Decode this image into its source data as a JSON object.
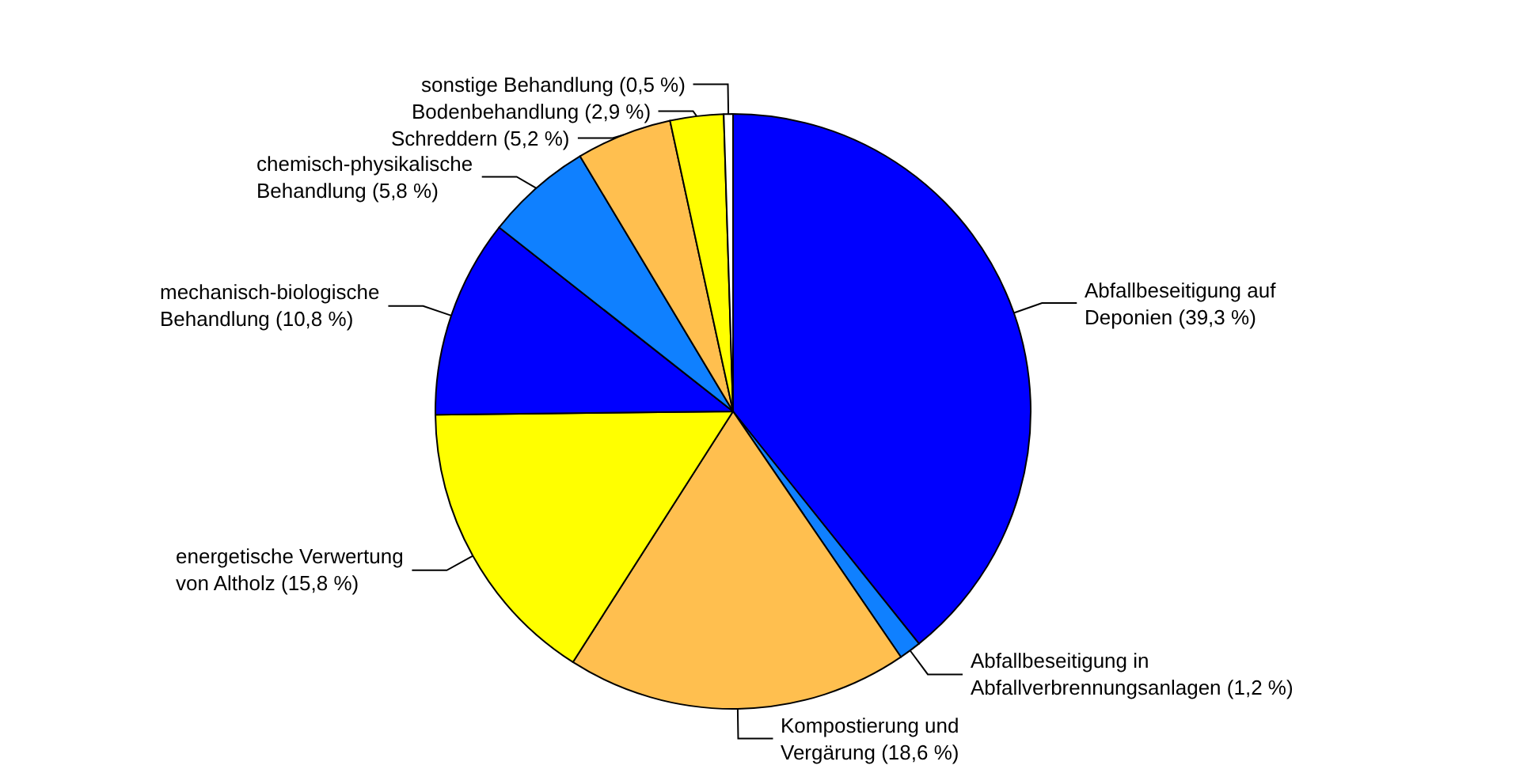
{
  "chart_data": {
    "type": "pie",
    "categories": [
      "Abfallbeseitigung auf\nDeponien",
      "Abfallbeseitigung in\nAbfallverbrennungsanlagen",
      "Kompostierung und\nVergärung",
      "energetische Verwertung\nvon Altholz",
      "mechanisch-biologische\nBehandlung",
      "chemisch-physikalische\nBehandlung",
      "Schreddern",
      "Bodenbehandlung",
      "sonstige Behandlung"
    ],
    "values": [
      39.3,
      1.2,
      18.6,
      15.8,
      10.8,
      5.8,
      5.2,
      2.9,
      0.5
    ],
    "value_labels": [
      "(39,3 %)",
      "(1,2 %)",
      "(18,6 %)",
      "(15,8 %)",
      "(10,8 %)",
      "(5,8 %)",
      "(5,2 %)",
      "(2,9 %)",
      "(0,5 %)"
    ],
    "colors": [
      "#0000ff",
      "#0f80ff",
      "#ffbf4f",
      "#ffff00",
      "#0000ff",
      "#0f80ff",
      "#ffbf4f",
      "#ffff00",
      "#ffffff"
    ],
    "legend": false
  }
}
